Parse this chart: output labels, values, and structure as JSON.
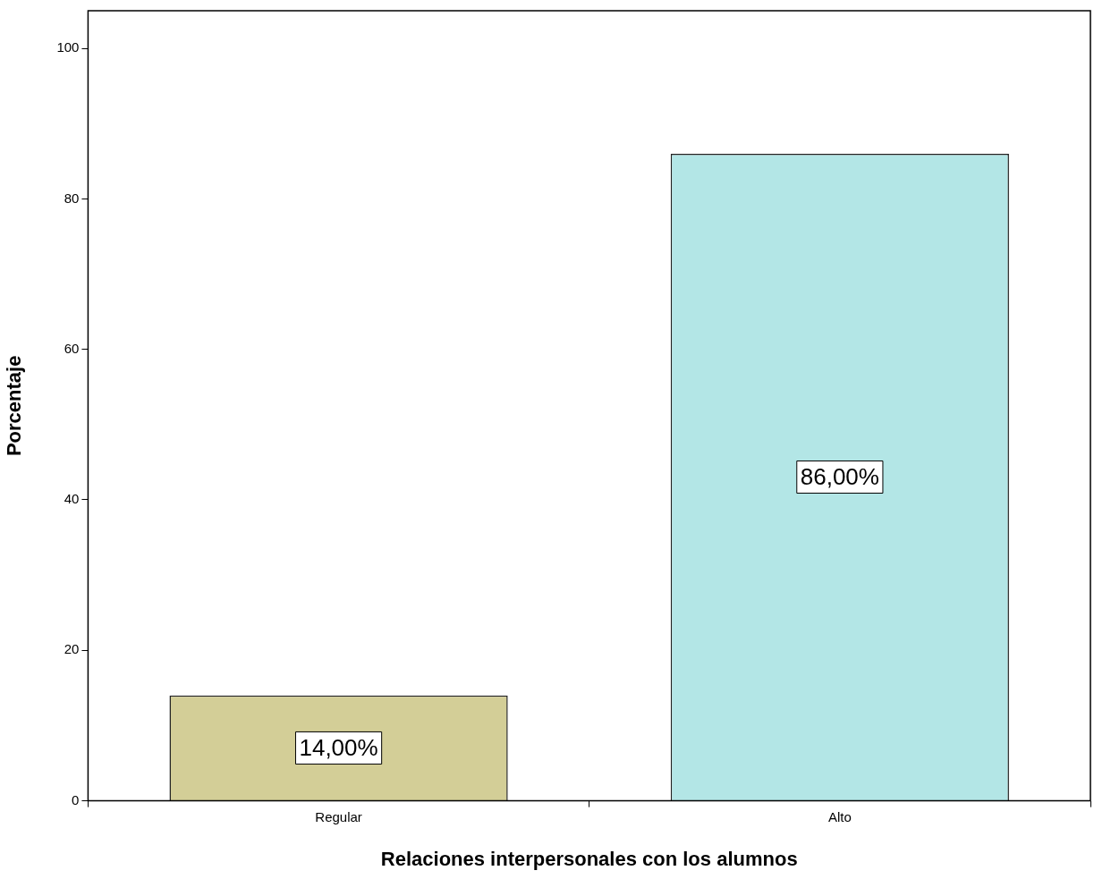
{
  "chart_data": {
    "type": "bar",
    "xlabel": "Relaciones interpersonales con los alumnos",
    "ylabel": "Porcentaje",
    "categories": [
      "Regular",
      "Alto"
    ],
    "values": [
      14,
      86
    ],
    "colors": [
      "#d3ce97",
      "#b3e6e6"
    ],
    "value_labels": [
      "14,00%",
      "86,00%"
    ],
    "ylim": [
      0,
      105
    ],
    "yticks": [
      0,
      20,
      40,
      60,
      80,
      100
    ]
  }
}
